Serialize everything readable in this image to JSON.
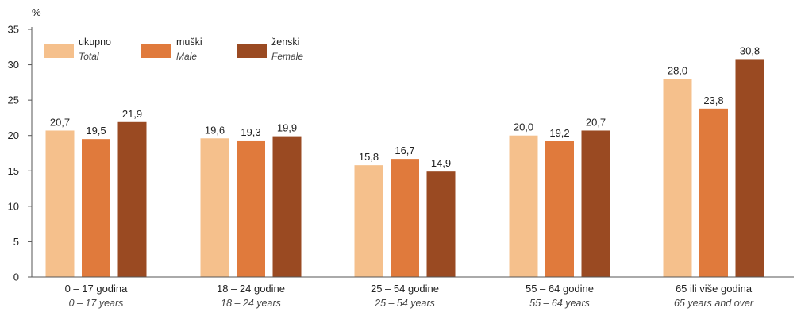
{
  "chart_data": {
    "type": "bar",
    "ylabel": "%",
    "ylim": [
      0,
      35
    ],
    "yticks": [
      0,
      5,
      10,
      15,
      20,
      25,
      30,
      35
    ],
    "grid": false,
    "legend_position": "top-left",
    "categories": [
      {
        "label": "0  – 17 godina",
        "sublabel": "0 – 17 years"
      },
      {
        "label": "18  – 24 godine",
        "sublabel": "18 – 24 years"
      },
      {
        "label": "25  – 54 godine",
        "sublabel": "25 – 54 years"
      },
      {
        "label": "55  – 64 godine",
        "sublabel": "55 – 64 years"
      },
      {
        "label": "65 ili više godina",
        "sublabel": "65 years and over"
      }
    ],
    "series": [
      {
        "name": "ukupno",
        "subname": "Total",
        "color": "#f5c08c",
        "values": [
          20.7,
          19.6,
          15.8,
          20.0,
          28.0
        ],
        "labels": [
          "20,7",
          "19,6",
          "15,8",
          "20,0",
          "28,0"
        ]
      },
      {
        "name": "muški",
        "subname": "Male",
        "color": "#e07a3c",
        "values": [
          19.5,
          19.3,
          16.7,
          19.2,
          23.8
        ],
        "labels": [
          "19,5",
          "19,3",
          "16,7",
          "19,2",
          "23,8"
        ]
      },
      {
        "name": "ženski",
        "subname": "Female",
        "color": "#9a4a22",
        "values": [
          21.9,
          19.9,
          14.9,
          20.7,
          30.8
        ],
        "labels": [
          "21,9",
          "19,9",
          "14,9",
          "20,7",
          "30,8"
        ]
      }
    ]
  }
}
